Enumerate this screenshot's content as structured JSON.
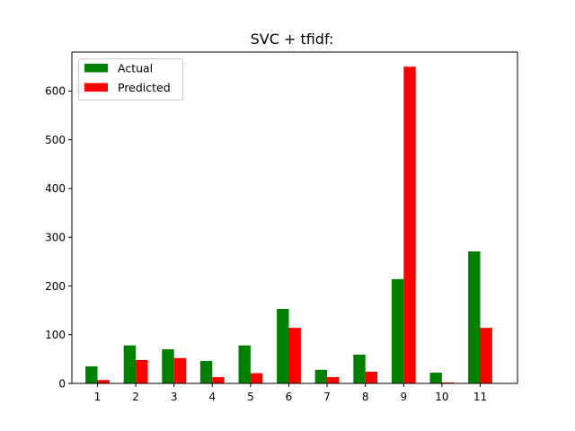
{
  "chart_data": {
    "type": "bar",
    "title": "SVC + tfidf:",
    "xlabel": "",
    "ylabel": "",
    "categories": [
      "1",
      "2",
      "3",
      "4",
      "5",
      "6",
      "7",
      "8",
      "9",
      "10",
      "11"
    ],
    "series": [
      {
        "name": "Actual",
        "color": "#008000",
        "values": [
          35,
          78,
          70,
          46,
          78,
          153,
          28,
          59,
          214,
          22,
          271
        ]
      },
      {
        "name": "Predicted",
        "color": "#ff0000",
        "values": [
          7,
          48,
          52,
          13,
          21,
          114,
          13,
          24,
          650,
          2,
          114
        ]
      }
    ],
    "yticks": [
      0,
      100,
      200,
      300,
      400,
      500,
      600
    ],
    "ylim": [
      0,
      680
    ],
    "grid": false,
    "legend": "upper-left"
  }
}
